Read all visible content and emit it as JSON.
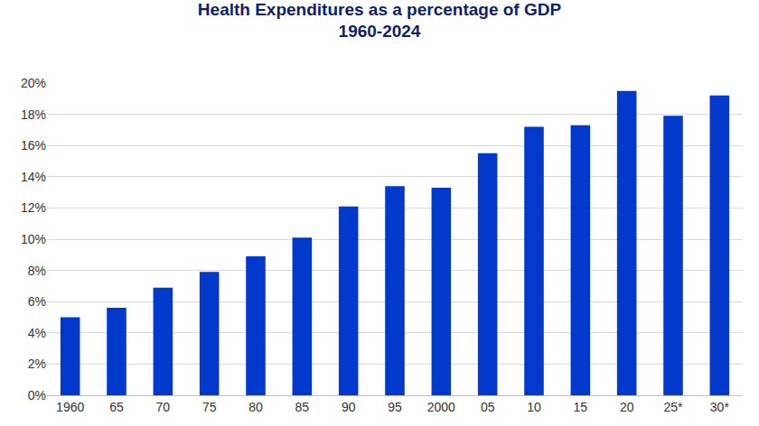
{
  "chart_data": {
    "type": "bar",
    "title": "Health Expenditures as a percentage of GDP\n1960-2024",
    "categories": [
      "1960",
      "65",
      "70",
      "75",
      "80",
      "85",
      "90",
      "95",
      "2000",
      "05",
      "10",
      "15",
      "20",
      "25*",
      "30*"
    ],
    "values": [
      5.0,
      5.6,
      6.9,
      7.9,
      8.9,
      10.1,
      12.1,
      13.4,
      13.3,
      15.5,
      17.2,
      17.3,
      19.5,
      17.9,
      19.2
    ],
    "color": "#0039cc",
    "ylim": [
      0,
      20
    ],
    "yticks": [
      {
        "value": 0,
        "label": "0%"
      },
      {
        "value": 2,
        "label": "2%"
      },
      {
        "value": 4,
        "label": "4%"
      },
      {
        "value": 6,
        "label": "6%"
      },
      {
        "value": 8,
        "label": "8%"
      },
      {
        "value": 10,
        "label": "10%"
      },
      {
        "value": 12,
        "label": "12%"
      },
      {
        "value": 14,
        "label": "14%"
      },
      {
        "value": 16,
        "label": "16%"
      },
      {
        "value": 18,
        "label": "18%"
      },
      {
        "value": 20,
        "label": "20%"
      }
    ],
    "grid": true
  }
}
